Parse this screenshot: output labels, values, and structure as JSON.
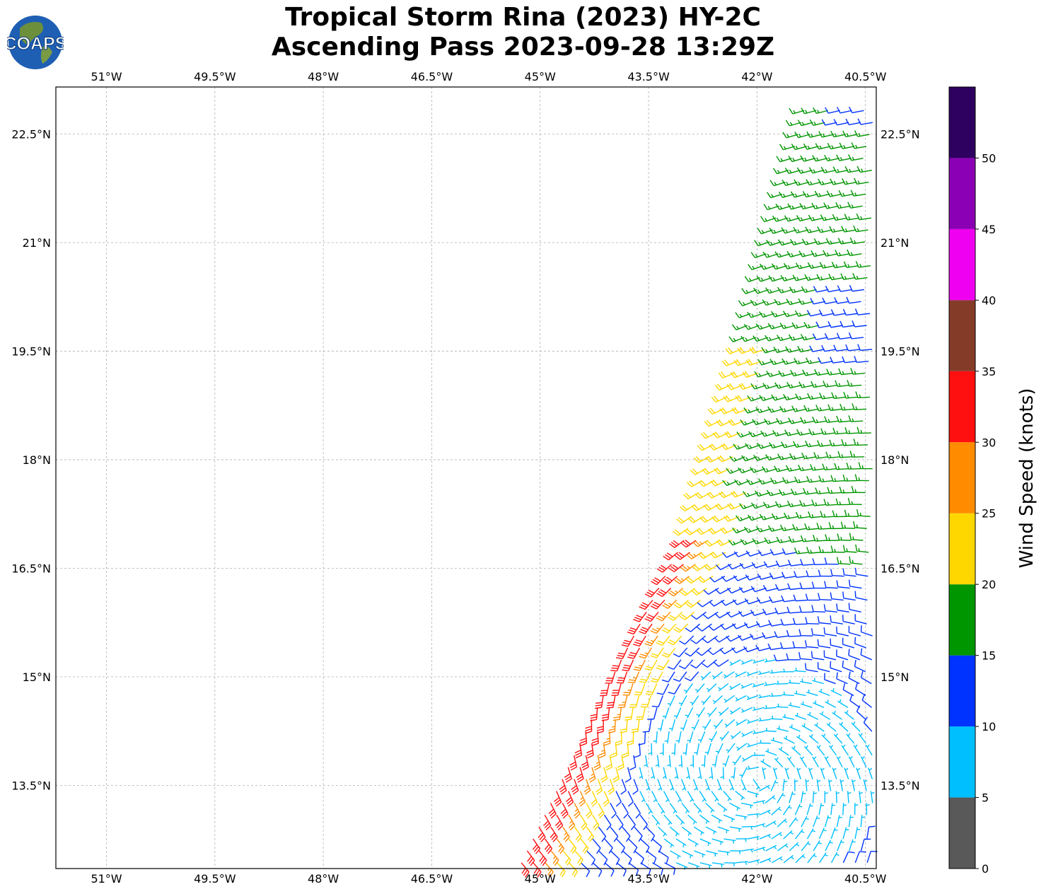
{
  "title": {
    "line1": "Tropical Storm Rina (2023) HY-2C",
    "line2": "Ascending Pass 2023-09-28 13:29Z"
  },
  "logo": {
    "text": "COAPS",
    "icon": "globe-logo"
  },
  "chart_data": {
    "type": "wind-barb-map",
    "xlabel": "",
    "ylabel": "",
    "xlim": [
      -51.7,
      -40.35
    ],
    "ylim": [
      12.35,
      23.15
    ],
    "grid": true,
    "x_ticks": [
      -51,
      -49.5,
      -48,
      -46.5,
      -45,
      -43.5,
      -42,
      -40.5
    ],
    "x_tick_labels": [
      "51°W",
      "49.5°W",
      "48°W",
      "46.5°W",
      "45°W",
      "43.5°W",
      "42°W",
      "40.5°W"
    ],
    "y_ticks": [
      13.5,
      15,
      16.5,
      18,
      19.5,
      21,
      22.5
    ],
    "y_tick_labels": [
      "13.5°N",
      "15°N",
      "16.5°N",
      "18°N",
      "19.5°N",
      "21°N",
      "22.5°N"
    ],
    "swath": {
      "left_edge": [
        [
          -45.3,
          12.35
        ],
        [
          -44.0,
          15.0
        ],
        [
          -43.0,
          16.9
        ],
        [
          -42.2,
          19.6
        ],
        [
          -41.3,
          23.0
        ]
      ],
      "right_edge": [
        [
          -40.35,
          12.35
        ],
        [
          -40.35,
          23.0
        ]
      ]
    },
    "storm_center": {
      "lon": -42.0,
      "lat": 13.6
    },
    "colorbar": {
      "label": "Wind Speed (knots)",
      "bounds": [
        0,
        5,
        10,
        15,
        20,
        25,
        30,
        35,
        40,
        45,
        50,
        55
      ],
      "tick_labels": [
        "0",
        "5",
        "10",
        "15",
        "20",
        "25",
        "30",
        "35",
        "40",
        "45",
        "50"
      ],
      "colors": [
        "#595959",
        "#00bfff",
        "#0033ff",
        "#009600",
        "#ffd700",
        "#ff8c00",
        "#ff1010",
        "#843c28",
        "#f000f0",
        "#8b00b4",
        "#2e0060"
      ]
    }
  }
}
